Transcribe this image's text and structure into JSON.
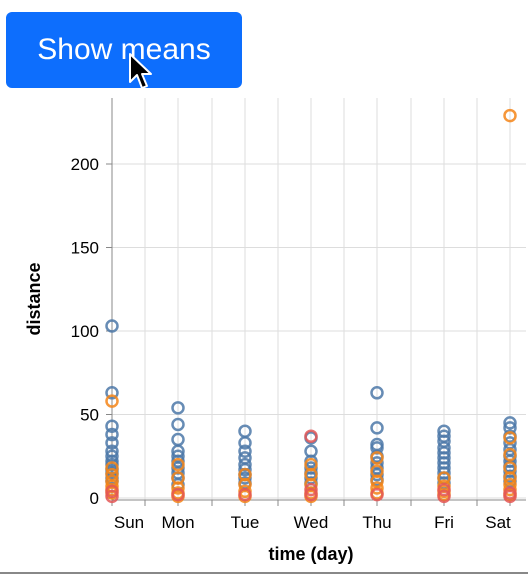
{
  "button": {
    "label": "Show means"
  },
  "chart_data": {
    "type": "scatter",
    "title": "",
    "xlabel": "time (day)",
    "ylabel": "distance",
    "categories": [
      "Sun",
      "Mon",
      "Tue",
      "Wed",
      "Thu",
      "Fri",
      "Sat"
    ],
    "ylim": [
      0,
      230
    ],
    "yticks": [
      0,
      50,
      100,
      150,
      200
    ],
    "grid": true,
    "marker": "hollow-circle",
    "colors": {
      "blue": "#4c78a8",
      "orange": "#f58518",
      "red": "#e45756"
    },
    "series": [
      {
        "color": "#4c78a8",
        "points": [
          [
            "Sun",
            103
          ],
          [
            "Sun",
            63
          ],
          [
            "Sun",
            43
          ],
          [
            "Sun",
            38
          ],
          [
            "Sun",
            33
          ],
          [
            "Sun",
            28
          ],
          [
            "Sun",
            25
          ],
          [
            "Sun",
            22
          ],
          [
            "Sun",
            20
          ],
          [
            "Sun",
            17
          ],
          [
            "Sun",
            15
          ],
          [
            "Sun",
            12
          ],
          [
            "Sun",
            10
          ],
          [
            "Mon",
            54
          ],
          [
            "Mon",
            44
          ],
          [
            "Mon",
            35
          ],
          [
            "Mon",
            28
          ],
          [
            "Mon",
            25
          ],
          [
            "Mon",
            22
          ],
          [
            "Mon",
            18
          ],
          [
            "Mon",
            15
          ],
          [
            "Mon",
            12
          ],
          [
            "Mon",
            8
          ],
          [
            "Tue",
            40
          ],
          [
            "Tue",
            33
          ],
          [
            "Tue",
            28
          ],
          [
            "Tue",
            24
          ],
          [
            "Tue",
            20
          ],
          [
            "Tue",
            17
          ],
          [
            "Tue",
            14
          ],
          [
            "Tue",
            12
          ],
          [
            "Tue",
            9
          ],
          [
            "Wed",
            36
          ],
          [
            "Wed",
            28
          ],
          [
            "Wed",
            22
          ],
          [
            "Wed",
            18
          ],
          [
            "Wed",
            15
          ],
          [
            "Wed",
            12
          ],
          [
            "Wed",
            9
          ],
          [
            "Thu",
            63
          ],
          [
            "Thu",
            42
          ],
          [
            "Thu",
            32
          ],
          [
            "Thu",
            30
          ],
          [
            "Thu",
            25
          ],
          [
            "Thu",
            21
          ],
          [
            "Thu",
            18
          ],
          [
            "Thu",
            14
          ],
          [
            "Thu",
            11
          ],
          [
            "Fri",
            40
          ],
          [
            "Fri",
            37
          ],
          [
            "Fri",
            34
          ],
          [
            "Fri",
            30
          ],
          [
            "Fri",
            27
          ],
          [
            "Fri",
            24
          ],
          [
            "Fri",
            21
          ],
          [
            "Fri",
            18
          ],
          [
            "Fri",
            15
          ],
          [
            "Fri",
            12
          ],
          [
            "Fri",
            9
          ],
          [
            "Sat",
            45
          ],
          [
            "Sat",
            42
          ],
          [
            "Sat",
            37
          ],
          [
            "Sat",
            33
          ],
          [
            "Sat",
            29
          ],
          [
            "Sat",
            25
          ],
          [
            "Sat",
            22
          ],
          [
            "Sat",
            19
          ],
          [
            "Sat",
            16
          ],
          [
            "Sat",
            13
          ],
          [
            "Sat",
            10
          ]
        ]
      },
      {
        "color": "#f58518",
        "points": [
          [
            "Sun",
            58
          ],
          [
            "Sun",
            18
          ],
          [
            "Sun",
            14
          ],
          [
            "Sun",
            10
          ],
          [
            "Sun",
            7
          ],
          [
            "Sun",
            5
          ],
          [
            "Sun",
            3
          ],
          [
            "Mon",
            20
          ],
          [
            "Mon",
            12
          ],
          [
            "Mon",
            6
          ],
          [
            "Mon",
            3
          ],
          [
            "Mon",
            1
          ],
          [
            "Tue",
            14
          ],
          [
            "Tue",
            8
          ],
          [
            "Tue",
            4
          ],
          [
            "Tue",
            1
          ],
          [
            "Wed",
            20
          ],
          [
            "Wed",
            14
          ],
          [
            "Wed",
            8
          ],
          [
            "Wed",
            3
          ],
          [
            "Wed",
            1
          ],
          [
            "Thu",
            24
          ],
          [
            "Thu",
            16
          ],
          [
            "Thu",
            10
          ],
          [
            "Thu",
            6
          ],
          [
            "Thu",
            3
          ],
          [
            "Fri",
            12
          ],
          [
            "Fri",
            7
          ],
          [
            "Fri",
            4
          ],
          [
            "Fri",
            2
          ],
          [
            "Sat",
            229
          ],
          [
            "Sat",
            36
          ],
          [
            "Sat",
            26
          ],
          [
            "Sat",
            18
          ],
          [
            "Sat",
            12
          ],
          [
            "Sat",
            8
          ],
          [
            "Sat",
            5
          ],
          [
            "Sat",
            2
          ]
        ]
      },
      {
        "color": "#e45756",
        "points": [
          [
            "Sun",
            4
          ],
          [
            "Sun",
            1
          ],
          [
            "Mon",
            2
          ],
          [
            "Tue",
            2
          ],
          [
            "Wed",
            37
          ],
          [
            "Wed",
            5
          ],
          [
            "Wed",
            2
          ],
          [
            "Thu",
            2
          ],
          [
            "Fri",
            5
          ],
          [
            "Fri",
            1
          ],
          [
            "Sat",
            3
          ],
          [
            "Sat",
            1
          ]
        ]
      }
    ]
  }
}
